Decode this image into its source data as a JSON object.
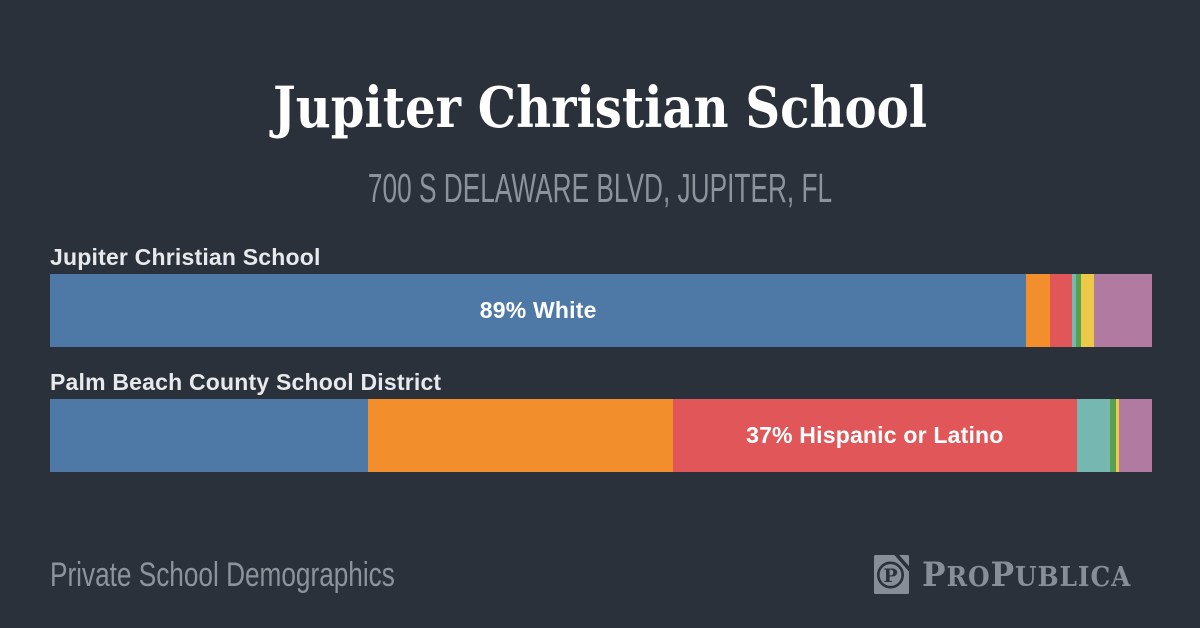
{
  "header": {
    "title": "Jupiter Christian School",
    "subtitle": "700 S DELAWARE BLVD, JUPITER, FL"
  },
  "chart_data": {
    "type": "bar",
    "variant": "horizontal-stacked-percent",
    "title": "Jupiter Christian School",
    "subtitle": "700 S DELAWARE BLVD, JUPITER, FL",
    "xlim": [
      0,
      100
    ],
    "grid": false,
    "legend": "none",
    "rows": [
      {
        "label": "Jupiter Christian School",
        "segments": [
          {
            "color": "#4e79a7",
            "percent": 88.6,
            "label": "89% White"
          },
          {
            "color": "#f28e2b",
            "percent": 2.1,
            "label": ""
          },
          {
            "color": "#e15759",
            "percent": 2.0,
            "label": ""
          },
          {
            "color": "#76b7b2",
            "percent": 0.45,
            "label": ""
          },
          {
            "color": "#59a14f",
            "percent": 0.45,
            "label": ""
          },
          {
            "color": "#edc949",
            "percent": 1.1,
            "label": ""
          },
          {
            "color": "#b07aa1",
            "percent": 5.3,
            "label": ""
          }
        ]
      },
      {
        "label": "Palm Beach County School District",
        "segments": [
          {
            "color": "#4e79a7",
            "percent": 28.9,
            "label": ""
          },
          {
            "color": "#f28e2b",
            "percent": 27.6,
            "label": ""
          },
          {
            "color": "#e15759",
            "percent": 36.7,
            "label": "37% Hispanic or Latino"
          },
          {
            "color": "#76b7b2",
            "percent": 3.0,
            "label": ""
          },
          {
            "color": "#59a14f",
            "percent": 0.5,
            "label": ""
          },
          {
            "color": "#edc949",
            "percent": 0.3,
            "label": ""
          },
          {
            "color": "#b07aa1",
            "percent": 3.0,
            "label": ""
          }
        ]
      }
    ]
  },
  "footer": {
    "label": "Private School Demographics",
    "brand": "ProPublica",
    "wordmark": {
      "cap1": "P",
      "small1": "RO",
      "cap2": "P",
      "small2": "UBLICA"
    }
  },
  "theme": {
    "background": "#2b313a",
    "title_color": "#ffffff",
    "muted_text": "#8d939b",
    "row_label_color": "#e7e9ec",
    "bar_label_color": "#ffffff",
    "logo_color": "#878e97"
  }
}
